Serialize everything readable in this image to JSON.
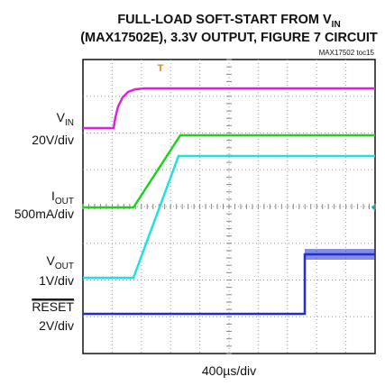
{
  "title": {
    "line1": {
      "text": "FULL-LOAD SOFT-START FROM V",
      "sub": "IN"
    },
    "line2": "(MAX17502E), 3.3V OUTPUT, FIGURE 7 CIRCUIT"
  },
  "figure_id": "MAX17502 toc15",
  "channels": [
    {
      "name": "V",
      "sub": "IN",
      "scale": "20V/div"
    },
    {
      "name": "I",
      "sub": "OUT",
      "scale": "500mA/div"
    },
    {
      "name": "V",
      "sub": "OUT",
      "scale": "1V/div"
    },
    {
      "name": "RESET",
      "scale": "2V/div"
    }
  ],
  "x_scale": "400µs/div"
}
